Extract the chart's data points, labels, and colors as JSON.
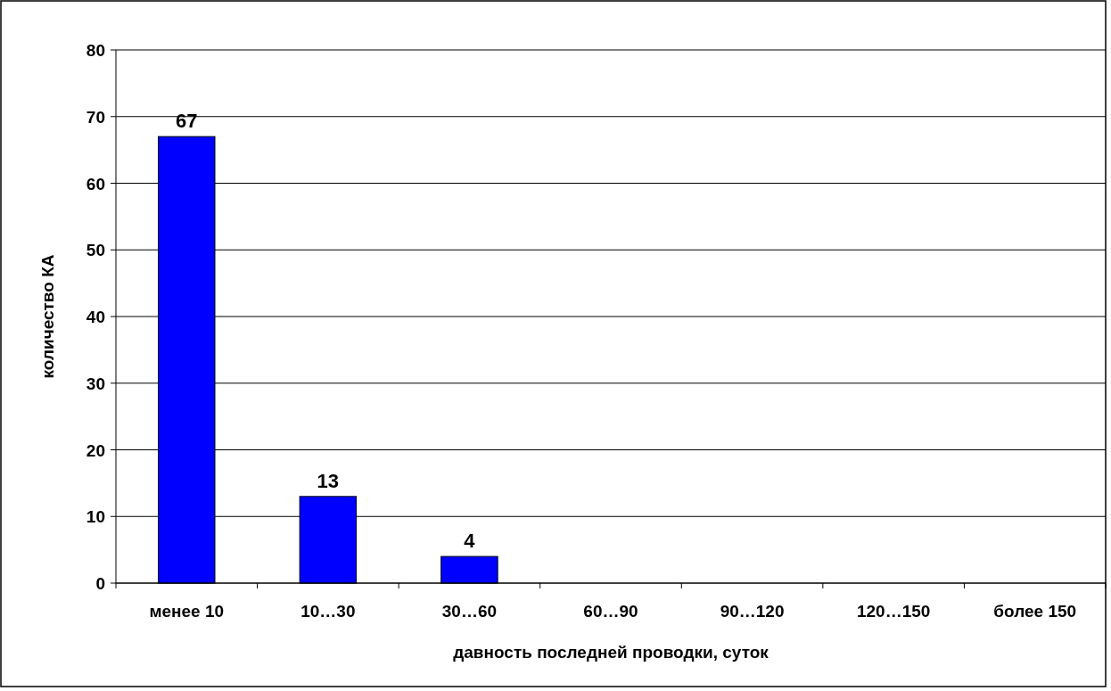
{
  "chart_data": {
    "type": "bar",
    "xlabel": "давность последней проводки, суток",
    "ylabel": "количество КА",
    "categories": [
      "менее 10",
      "10…30",
      "30…60",
      "60…90",
      "90…120",
      "120…150",
      "более 150"
    ],
    "values": [
      67,
      13,
      4,
      0,
      0,
      0,
      0
    ],
    "value_labels": [
      "67",
      "13",
      "4",
      null,
      null,
      null,
      null
    ],
    "color": "#0000ff",
    "ylim": [
      0,
      80
    ],
    "yticks": [
      0,
      10,
      20,
      30,
      40,
      50,
      60,
      70,
      80
    ],
    "grid": "y"
  }
}
